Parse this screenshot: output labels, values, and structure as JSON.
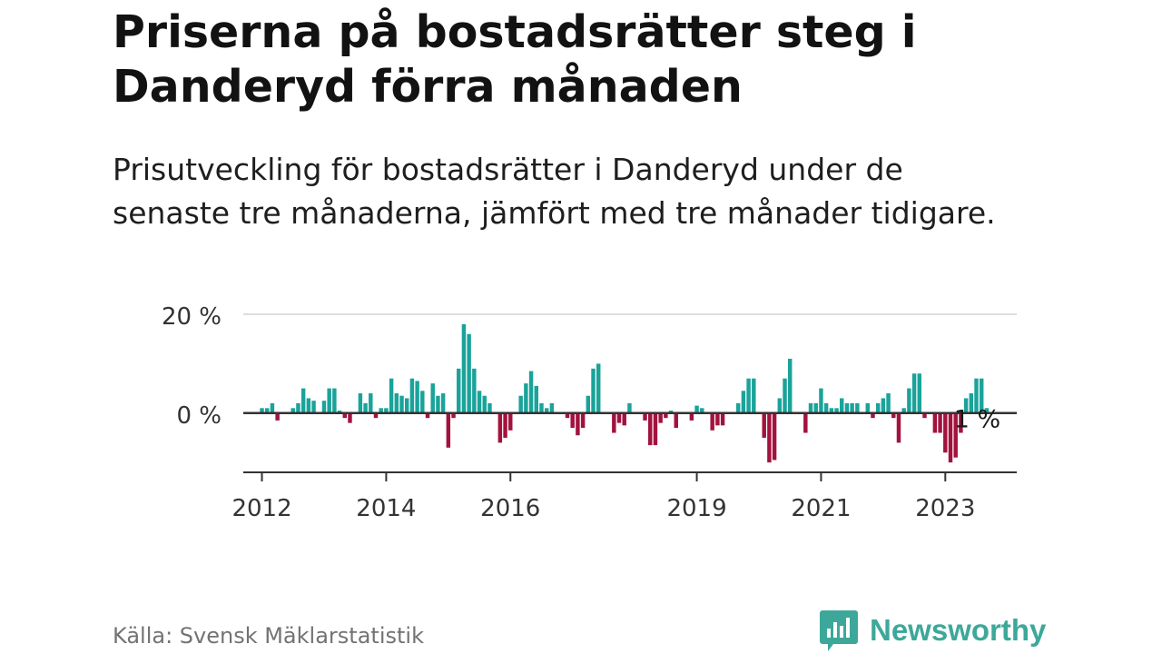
{
  "title": "Priserna på bostadsrätter steg i Danderyd förra månaden",
  "subtitle": "Prisutveckling för bostadsrätter i Danderyd under de senaste tre månaderna, jämfört med tre månader tidigare.",
  "source": "Källa: Svensk Mäklarstatistik",
  "brand": {
    "name": "Newsworthy",
    "icon": "newsworthy-logo-icon",
    "color": "#3da89a"
  },
  "colors": {
    "positive": "#1aa39a",
    "negative": "#a3123f",
    "grid": "#dddddd",
    "axis": "#333333"
  },
  "chart_data": {
    "type": "bar",
    "title": "",
    "xlabel": "",
    "ylabel": "",
    "ylim": [
      -12,
      20
    ],
    "yticks": [
      0,
      20
    ],
    "ytick_labels": [
      "0 %",
      "20 %"
    ],
    "xlim": [
      2011.7,
      2024.15
    ],
    "xticks": [
      2012,
      2014,
      2016,
      2019,
      2021,
      2023
    ],
    "xtick_labels": [
      "2012",
      "2014",
      "2016",
      "2019",
      "2021",
      "2023"
    ],
    "start": 2012.0,
    "step": 0.083333,
    "annotation": {
      "text": "1 %",
      "index": 135
    },
    "values": [
      1,
      1,
      2,
      -1.5,
      0,
      0,
      1,
      2,
      5,
      3,
      2.5,
      0,
      2.5,
      5,
      5,
      0.5,
      -1,
      -2,
      0,
      4,
      2,
      4,
      -1,
      1,
      1,
      7,
      4,
      3.5,
      3,
      7,
      6.5,
      4.5,
      -1,
      6,
      3.5,
      4,
      -7,
      -1,
      9,
      18,
      16,
      9,
      4.5,
      3.5,
      2,
      0,
      -6,
      -5,
      -3.5,
      0,
      3.5,
      6,
      8.5,
      5.5,
      2,
      1,
      2,
      0,
      0,
      -1,
      -3,
      -4.5,
      -3,
      3.5,
      9,
      10,
      0,
      0,
      -4,
      -2,
      -2.5,
      2,
      0,
      0,
      -1.5,
      -6.5,
      -6.5,
      -2,
      -1,
      0.5,
      -3,
      0,
      0,
      -1.5,
      1.5,
      1,
      0,
      -3.5,
      -2.5,
      -2.5,
      0,
      0,
      2,
      4.5,
      7,
      7,
      0,
      -5,
      -10,
      -9.5,
      3,
      7,
      11,
      0,
      0,
      -4,
      2,
      2,
      5,
      2,
      1,
      1,
      3,
      2,
      2,
      2,
      0,
      2,
      -1,
      2,
      3,
      4,
      -1,
      -6,
      1,
      5,
      8,
      8,
      -1,
      0,
      -4,
      -4,
      -8,
      -10,
      -9,
      -4,
      3,
      4,
      7,
      7,
      1
    ]
  }
}
